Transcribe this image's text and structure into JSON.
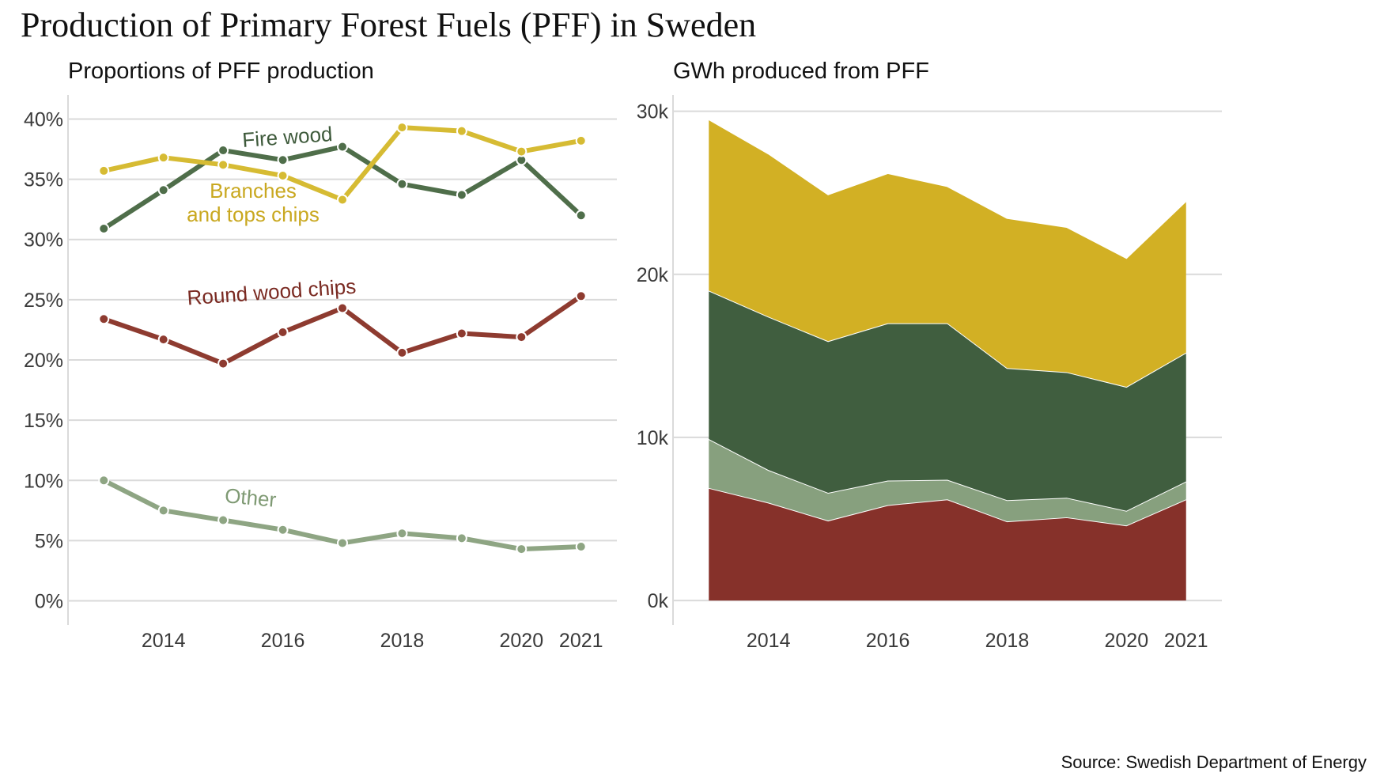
{
  "title": "Production of Primary Forest Fuels (PFF) in Sweden",
  "source": "Source: Swedish Department of Energy",
  "chart_data": [
    {
      "type": "line",
      "title": "Proportions of PFF production",
      "x": [
        2013,
        2014,
        2015,
        2016,
        2017,
        2018,
        2019,
        2020,
        2021
      ],
      "x_tick_labels": [
        "2014",
        "2016",
        "2018",
        "2020",
        "2021"
      ],
      "x_tick_values": [
        2014,
        2016,
        2018,
        2020,
        2021
      ],
      "xlim": [
        2012.4,
        2021.6
      ],
      "ylim": [
        -0.02,
        0.42
      ],
      "y_tick_values": [
        0,
        0.05,
        0.1,
        0.15,
        0.2,
        0.25,
        0.3,
        0.35,
        0.4
      ],
      "y_tick_labels": [
        "0%",
        "5%",
        "10%",
        "15%",
        "20%",
        "25%",
        "30%",
        "35%",
        "40%"
      ],
      "grid": "horizontal",
      "series": [
        {
          "name": "Fire wood",
          "color": "#4f6e4a",
          "values": [
            0.309,
            0.341,
            0.374,
            0.366,
            0.377,
            0.346,
            0.337,
            0.366,
            0.32
          ]
        },
        {
          "name": "Branches\nand tops chips",
          "color": "#d6bb33",
          "values": [
            0.357,
            0.368,
            0.362,
            0.353,
            0.333,
            0.393,
            0.39,
            0.373,
            0.382
          ]
        },
        {
          "name": "Round wood chips",
          "color": "#8e3b30",
          "values": [
            0.234,
            0.217,
            0.197,
            0.223,
            0.243,
            0.206,
            0.222,
            0.219,
            0.253
          ]
        },
        {
          "name": "Other",
          "color": "#8ea583",
          "values": [
            0.1,
            0.075,
            0.067,
            0.059,
            0.048,
            0.056,
            0.052,
            0.043,
            0.045
          ]
        }
      ]
    },
    {
      "type": "area",
      "stacked": true,
      "title": "GWh produced from PFF",
      "x": [
        2013,
        2014,
        2015,
        2016,
        2017,
        2018,
        2019,
        2020,
        2021
      ],
      "x_tick_labels": [
        "2014",
        "2016",
        "2018",
        "2020",
        "2021"
      ],
      "x_tick_values": [
        2014,
        2016,
        2018,
        2020,
        2021
      ],
      "xlim": [
        2012.4,
        2021.6
      ],
      "ylim": [
        -1500,
        31000
      ],
      "y_tick_values": [
        0,
        10000,
        20000,
        30000
      ],
      "y_tick_labels": [
        "0k",
        "10k",
        "20k",
        "30k"
      ],
      "grid": "horizontal",
      "series": [
        {
          "name": "Round wood chips",
          "color": "#86312a",
          "values": [
            6900,
            6000,
            4900,
            5850,
            6200,
            4850,
            5100,
            4600,
            6200
          ]
        },
        {
          "name": "Other",
          "color": "#87a07e",
          "values": [
            3000,
            2000,
            1700,
            1500,
            1200,
            1300,
            1200,
            900,
            1100
          ]
        },
        {
          "name": "Fire wood",
          "color": "#405e3f",
          "values": [
            9100,
            9400,
            9300,
            9650,
            9600,
            8100,
            7700,
            7600,
            7900
          ]
        },
        {
          "name": "Branches and tops chips",
          "color": "#d2b024",
          "values": [
            10500,
            10000,
            9000,
            9200,
            8400,
            9200,
            8900,
            7900,
            9300
          ]
        }
      ]
    }
  ]
}
